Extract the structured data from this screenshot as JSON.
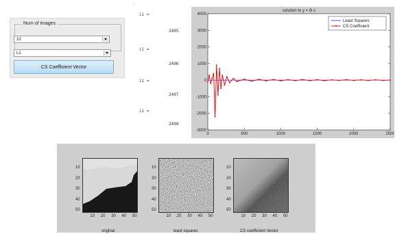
{
  "controls": {
    "group_label": "Num of images",
    "num_images_value": "10",
    "method_value": "L1",
    "button_label": "CS Coefficient Vector"
  },
  "command_window": {
    "entries": [
      {
        "var": "ii =",
        "value": "2495"
      },
      {
        "var": "ii =",
        "value": "2496"
      },
      {
        "var": "ii =",
        "value": "2497"
      },
      {
        "var": "ii =",
        "value": "2498"
      }
    ]
  },
  "chart_data": {
    "type": "line",
    "title": "solution to y = Θ s",
    "xlim": [
      0,
      2500
    ],
    "ylim": [
      -3000,
      4000
    ],
    "xticks": [
      "0",
      "500",
      "1000",
      "1500",
      "2000",
      "2500"
    ],
    "yticks": [
      "4000",
      "3000",
      "2000",
      "1000",
      "0",
      "-1000",
      "-2000",
      "-3000"
    ],
    "grid": false,
    "legend_position": "top-right",
    "series": [
      {
        "name": "Least Squares",
        "color": "#3b3bff",
        "style": "line",
        "x": [
          0,
          250,
          500,
          750,
          1000,
          1250,
          1500,
          1750,
          2000,
          2250,
          2500
        ],
        "values": [
          0,
          0,
          0,
          0,
          0,
          0,
          0,
          0,
          0,
          0,
          0
        ]
      },
      {
        "name": "CS Coefficient",
        "color": "#e00000",
        "style": "line-markers",
        "x": [
          0,
          20,
          40,
          60,
          80,
          100,
          120,
          140,
          160,
          180,
          200,
          230,
          260,
          300,
          350,
          400,
          500,
          600,
          700,
          800,
          900,
          1000,
          1100,
          1200,
          1300,
          1400,
          1500,
          1600,
          1700,
          1800,
          1900,
          2000,
          2100,
          2200,
          2300,
          2400,
          2500
        ],
        "values": [
          -100,
          300,
          -200,
          100,
          400,
          -2200,
          900,
          -900,
          700,
          -500,
          300,
          -300,
          200,
          -150,
          100,
          -80,
          60,
          -60,
          50,
          -40,
          40,
          -40,
          30,
          -30,
          40,
          -30,
          30,
          -30,
          20,
          -20,
          30,
          -20,
          20,
          -20,
          20,
          -20,
          0
        ]
      }
    ]
  },
  "images": {
    "yticks": [
      "10",
      "20",
      "30",
      "40",
      "50"
    ],
    "xticks": [
      "10",
      "20",
      "30",
      "40",
      "50"
    ],
    "panels": [
      {
        "caption": "original"
      },
      {
        "caption": "least squares"
      },
      {
        "caption": "CS coefficient Vector"
      }
    ]
  }
}
